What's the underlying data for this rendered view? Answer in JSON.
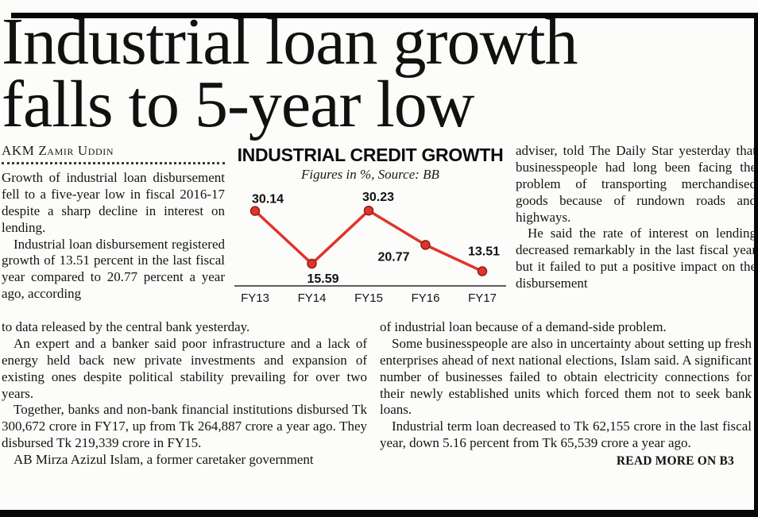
{
  "headline": {
    "line1": "Industrial loan growth",
    "line2": "falls to 5-year low"
  },
  "byline": "AKM Zamir Uddin",
  "article": {
    "left_top": [
      "Growth of industrial loan disbursement fell to a five-year low in fiscal 2016-17 despite a sharp decline in interest on lending.",
      "Industrial loan disbursement registered growth of 13.51 percent in the last fiscal year compared to 20.77 percent a year ago, according"
    ],
    "left_bottom": [
      "to data released by the central bank yesterday.",
      "An expert and a banker said poor infrastructure and a lack of energy held back new private investments and expansion of existing ones despite political stability prevailing for over two years.",
      "Together, banks and non-bank financial institutions disbursed Tk 300,672 crore in FY17, up from Tk 264,887 crore a year ago. They disbursed Tk 219,339 crore in FY15.",
      "AB Mirza Azizul Islam, a former caretaker government"
    ],
    "right_top": [
      "adviser, told The Daily Star yesterday that businesspeople had long been facing the problem of transporting merchandised goods because of rundown roads and highways.",
      "He said the rate of interest on lending decreased remarkably in the last fiscal year but it failed to put a positive impact on the disbursement"
    ],
    "right_bottom": [
      "of industrial loan because of a demand-side problem.",
      "Some businesspeople are also in uncertainty about setting up fresh enterprises ahead of next national elections, Islam said. A significant number of businesses failed to obtain electricity connections for their newly established units which forced them not to seek bank loans.",
      "Industrial term loan decreased to Tk 62,155 crore in the last fiscal year, down 5.16 percent from Tk 65,539 crore a year ago."
    ],
    "read_more": "READ MORE ON B3"
  },
  "chart_data": {
    "type": "line",
    "title": "INDUSTRIAL CREDIT GROWTH",
    "subtitle": "Figures in %, Source: BB",
    "categories": [
      "FY13",
      "FY14",
      "FY15",
      "FY16",
      "FY17"
    ],
    "series": [
      {
        "name": "Industrial credit growth",
        "values": [
          30.14,
          15.59,
          30.23,
          20.77,
          13.51
        ]
      }
    ],
    "unit": "%",
    "source": "BB",
    "ylim": [
      11,
      34
    ],
    "grid": false,
    "legend": "none",
    "line_color": "#e0342b",
    "point_edge_color": "#8f1f18",
    "axis_color": "#2a2a2a"
  }
}
